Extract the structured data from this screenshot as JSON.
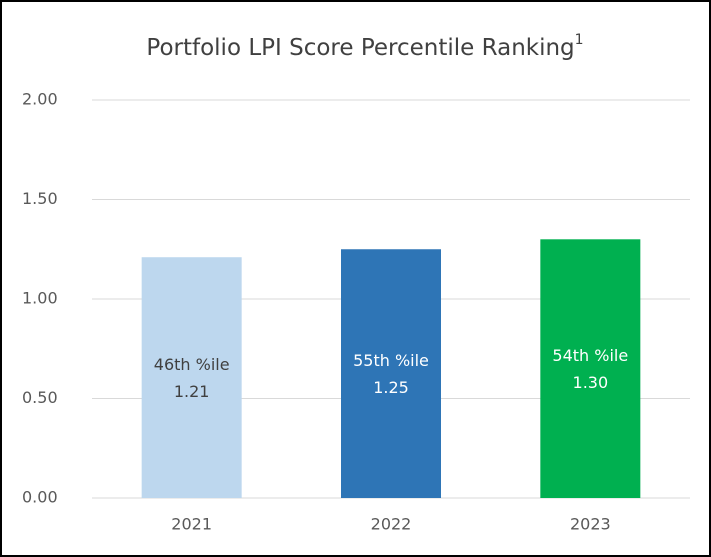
{
  "chart_data": {
    "type": "bar",
    "title": "Portfolio LPI Score Percentile Ranking",
    "title_superscript": "1",
    "categories": [
      "2021",
      "2022",
      "2023"
    ],
    "values": [
      1.21,
      1.25,
      1.3
    ],
    "value_labels": [
      "1.21",
      "1.25",
      "1.30"
    ],
    "percentile_labels": [
      "46th %ile",
      "55th %ile",
      "54th %ile"
    ],
    "colors": [
      "#bdd7ee",
      "#2e75b6",
      "#00b050"
    ],
    "label_colors": [
      "#404040",
      "#ffffff",
      "#ffffff"
    ],
    "ylim": [
      0,
      2
    ],
    "yticks": [
      {
        "value": 0,
        "label": "0.00"
      },
      {
        "value": 0.5,
        "label": "0.50"
      },
      {
        "value": 1,
        "label": "1.00"
      },
      {
        "value": 1.5,
        "label": "1.50"
      },
      {
        "value": 2,
        "label": "2.00"
      }
    ],
    "grid": true
  }
}
